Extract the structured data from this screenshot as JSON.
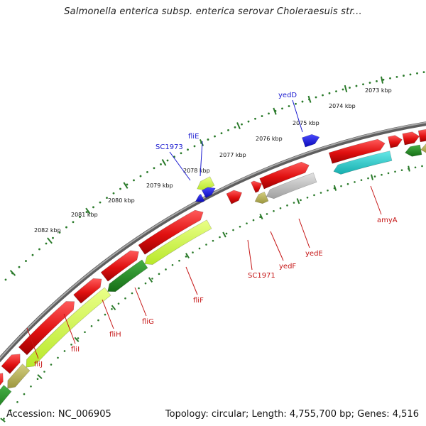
{
  "title": "Salmonella enterica subsp. enterica serovar Choleraesuis str...",
  "footer": {
    "accession": "Accession: NC_006905",
    "stats": "Topology: circular; Length: 4,755,700 bp; Genes: 4,516"
  },
  "ruler": {
    "ticks": [
      {
        "label": "2082 kbp"
      },
      {
        "label": "2081 kbp"
      },
      {
        "label": "2080 kbp"
      },
      {
        "label": "2079 kbp"
      },
      {
        "label": "2078 kbp"
      },
      {
        "label": "2077 kbp"
      },
      {
        "label": "2076 kbp"
      },
      {
        "label": "2075 kbp"
      },
      {
        "label": "2074 kbp"
      },
      {
        "label": "2073 kbp"
      }
    ]
  },
  "labels_top": [
    {
      "name": "SC1973"
    },
    {
      "name": "fliE"
    },
    {
      "name": "yedD"
    }
  ],
  "labels_bottom": [
    {
      "name": "fliJ"
    },
    {
      "name": "fliI"
    },
    {
      "name": "fliH"
    },
    {
      "name": "fliG"
    },
    {
      "name": "fliF"
    },
    {
      "name": "SC1971"
    },
    {
      "name": "yedF"
    },
    {
      "name": "yedE"
    },
    {
      "name": "amyA"
    }
  ],
  "colors": {
    "forward_cds": "#e01010",
    "reverse_cds_dark": "#1f8a1f",
    "reverse_cds_light": "#ccff33",
    "blue_cds": "#1414e0",
    "cyan_cds": "#22cccc",
    "grey_cds": "#bdbdbd",
    "olive_cds": "#b5b060",
    "backbone": "#7a7a7a",
    "tick_green": "#2a7a2a"
  }
}
